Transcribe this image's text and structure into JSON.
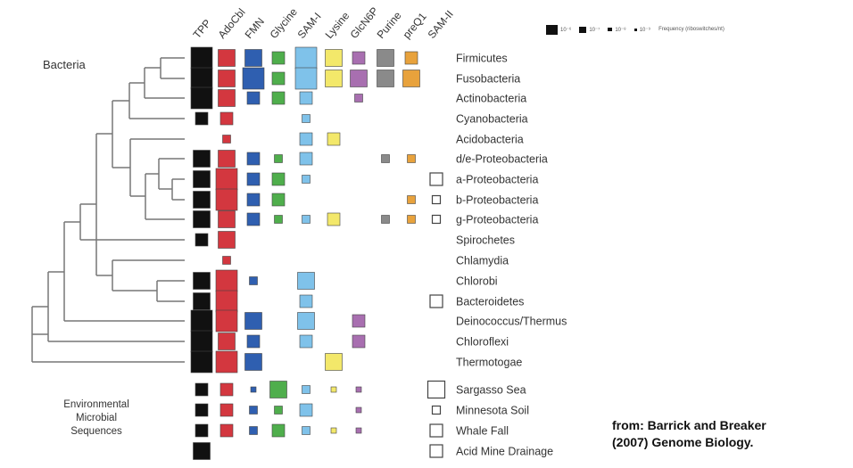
{
  "bacteria_label": "Bacteria",
  "env_label_lines": [
    "Environmental",
    "Microbial",
    "Sequences"
  ],
  "citation_lines": [
    "from: Barrick and Breaker",
    "(2007) Genome Biology."
  ],
  "riboswitches": [
    "TPP",
    "AdoCbl",
    "FMN",
    "Glycine",
    "SAM-I",
    "Lysine",
    "GlcN6P",
    "Purine",
    "preQ1",
    "SAM-II"
  ],
  "colors": {
    "TPP": "#111111",
    "AdoCbl": "#d3373f",
    "FMN": "#2f5fb0",
    "Glycine": "#4fae4c",
    "SAM-I": "#7fc2ea",
    "Lysine": "#f3e86a",
    "GlcN6P": "#a86fb0",
    "Purine": "#8a8a8a",
    "preQ1": "#e8a23c",
    "SAM-II": "#ffffff"
  },
  "legend": {
    "items": [
      "10⁻⁶",
      "10⁻⁷",
      "10⁻⁸",
      "10⁻⁹"
    ],
    "frequency_label": "Frequency (riboswitches/nt)"
  },
  "taxa": [
    {
      "name": "Firmicutes",
      "cells": [
        5,
        4,
        4,
        3,
        5,
        4,
        3,
        4,
        3,
        0
      ]
    },
    {
      "name": "Fusobacteria",
      "cells": [
        5,
        4,
        5,
        3,
        5,
        4,
        4,
        4,
        4,
        0
      ]
    },
    {
      "name": "Actinobacteria",
      "cells": [
        5,
        4,
        3,
        3,
        3,
        0,
        2,
        0,
        0,
        0
      ]
    },
    {
      "name": "Cyanobacteria",
      "cells": [
        3,
        3,
        0,
        0,
        2,
        0,
        0,
        0,
        0,
        0
      ]
    },
    {
      "name": "Acidobacteria",
      "cells": [
        0,
        2,
        0,
        0,
        3,
        3,
        0,
        0,
        0,
        0
      ]
    },
    {
      "name": "d/e-Proteobacteria",
      "cells": [
        4,
        4,
        3,
        2,
        3,
        0,
        0,
        2,
        2,
        0
      ]
    },
    {
      "name": "a-Proteobacteria",
      "cells": [
        4,
        5,
        3,
        3,
        2,
        0,
        0,
        0,
        0,
        3
      ]
    },
    {
      "name": "b-Proteobacteria",
      "cells": [
        4,
        5,
        3,
        3,
        0,
        0,
        0,
        0,
        2,
        2
      ]
    },
    {
      "name": "g-Proteobacteria",
      "cells": [
        4,
        4,
        3,
        2,
        2,
        3,
        0,
        2,
        2,
        2
      ]
    },
    {
      "name": "Spirochetes",
      "cells": [
        3,
        4,
        0,
        0,
        0,
        0,
        0,
        0,
        0,
        0
      ]
    },
    {
      "name": "Chlamydia",
      "cells": [
        0,
        2,
        0,
        0,
        0,
        0,
        0,
        0,
        0,
        0
      ]
    },
    {
      "name": "Chlorobi",
      "cells": [
        4,
        5,
        2,
        0,
        4,
        0,
        0,
        0,
        0,
        0
      ]
    },
    {
      "name": "Bacteroidetes",
      "cells": [
        4,
        5,
        0,
        0,
        3,
        0,
        0,
        0,
        0,
        3
      ]
    },
    {
      "name": "Deinococcus/Thermus",
      "cells": [
        5,
        5,
        4,
        0,
        4,
        0,
        3,
        0,
        0,
        0
      ]
    },
    {
      "name": "Chloroflexi",
      "cells": [
        5,
        4,
        3,
        0,
        3,
        0,
        3,
        0,
        0,
        0
      ]
    },
    {
      "name": "Thermotogae",
      "cells": [
        5,
        5,
        4,
        0,
        0,
        4,
        0,
        0,
        0,
        0
      ]
    },
    {
      "name": "Sargasso Sea",
      "cells": [
        3,
        3,
        1,
        4,
        2,
        1,
        1,
        0,
        0,
        4
      ]
    },
    {
      "name": "Minnesota Soil",
      "cells": [
        3,
        3,
        2,
        2,
        3,
        0,
        1,
        0,
        0,
        2
      ]
    },
    {
      "name": "Whale Fall",
      "cells": [
        3,
        3,
        2,
        3,
        2,
        1,
        1,
        0,
        0,
        3
      ]
    },
    {
      "name": "Acid Mine Drainage",
      "cells": [
        4,
        0,
        0,
        0,
        0,
        0,
        0,
        0,
        0,
        3
      ]
    }
  ]
}
